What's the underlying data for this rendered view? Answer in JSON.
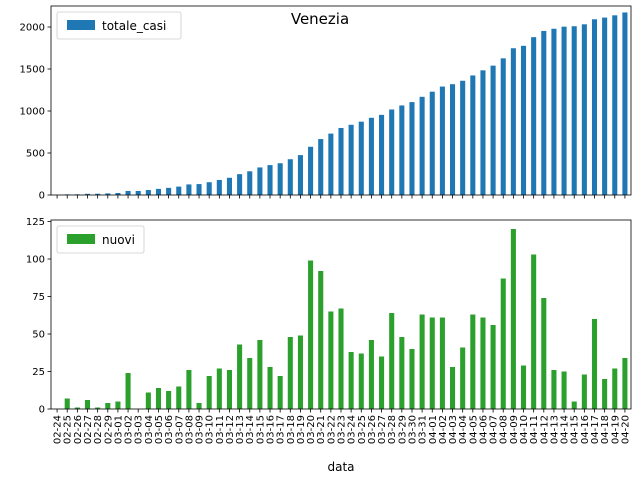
{
  "chart_data": [
    {
      "type": "bar",
      "title": "Venezia",
      "xlabel": "",
      "ylabel": "",
      "legend": "top-left",
      "grid": false,
      "color": "#1f77b4",
      "ylim": [
        0,
        2250
      ],
      "yticks": [
        0,
        500,
        1000,
        1500,
        2000
      ],
      "categories": [
        "02-24",
        "02-25",
        "02-26",
        "02-27",
        "02-28",
        "02-29",
        "03-01",
        "03-02",
        "03-03",
        "03-04",
        "03-05",
        "03-06",
        "03-07",
        "03-08",
        "03-09",
        "03-10",
        "03-11",
        "03-12",
        "03-13",
        "03-14",
        "03-15",
        "03-16",
        "03-17",
        "03-18",
        "03-19",
        "03-20",
        "03-21",
        "03-22",
        "03-23",
        "03-24",
        "03-25",
        "03-26",
        "03-27",
        "03-28",
        "03-29",
        "03-30",
        "03-31",
        "04-01",
        "04-02",
        "04-03",
        "04-04",
        "04-05",
        "04-06",
        "04-07",
        "04-08",
        "04-09",
        "04-10",
        "04-11",
        "04-12",
        "04-13",
        "04-14",
        "04-15",
        "04-16",
        "04-17",
        "04-18",
        "04-19",
        "04-20"
      ],
      "series": [
        {
          "name": "totale_casi",
          "values": [
            0,
            7,
            8,
            14,
            15,
            19,
            24,
            48,
            48,
            59,
            73,
            85,
            100,
            126,
            130,
            152,
            179,
            205,
            248,
            282,
            328,
            356,
            378,
            426,
            475,
            574,
            666,
            731,
            798,
            836,
            873,
            919,
            954,
            1018,
            1066,
            1106,
            1169,
            1230,
            1291,
            1319,
            1360,
            1423,
            1484,
            1540,
            1627,
            1747,
            1776,
            1879,
            1953,
            1979,
            2004,
            2009,
            2032,
            2092,
            2112,
            2139,
            2173
          ]
        }
      ]
    },
    {
      "type": "bar",
      "xlabel": "data",
      "ylabel": "",
      "legend": "top-left",
      "grid": false,
      "color": "#2ca02c",
      "ylim": [
        0,
        126
      ],
      "yticks": [
        0,
        25,
        50,
        75,
        100,
        125
      ],
      "categories": [
        "02-24",
        "02-25",
        "02-26",
        "02-27",
        "02-28",
        "02-29",
        "03-01",
        "03-02",
        "03-03",
        "03-04",
        "03-05",
        "03-06",
        "03-07",
        "03-08",
        "03-09",
        "03-10",
        "03-11",
        "03-12",
        "03-13",
        "03-14",
        "03-15",
        "03-16",
        "03-17",
        "03-18",
        "03-19",
        "03-20",
        "03-21",
        "03-22",
        "03-23",
        "03-24",
        "03-25",
        "03-26",
        "03-27",
        "03-28",
        "03-29",
        "03-30",
        "03-31",
        "04-01",
        "04-02",
        "04-03",
        "04-04",
        "04-05",
        "04-06",
        "04-07",
        "04-08",
        "04-09",
        "04-10",
        "04-11",
        "04-12",
        "04-13",
        "04-14",
        "04-15",
        "04-16",
        "04-17",
        "04-18",
        "04-19",
        "04-20"
      ],
      "series": [
        {
          "name": "nuovi",
          "values": [
            0,
            7,
            1,
            6,
            1,
            4,
            5,
            24,
            0,
            11,
            14,
            12,
            15,
            26,
            4,
            22,
            27,
            26,
            43,
            34,
            46,
            28,
            22,
            48,
            49,
            99,
            92,
            65,
            67,
            38,
            37,
            46,
            35,
            64,
            48,
            40,
            63,
            61,
            61,
            28,
            41,
            63,
            61,
            56,
            87,
            120,
            29,
            103,
            74,
            26,
            25,
            5,
            23,
            60,
            20,
            27,
            34
          ]
        }
      ]
    }
  ]
}
